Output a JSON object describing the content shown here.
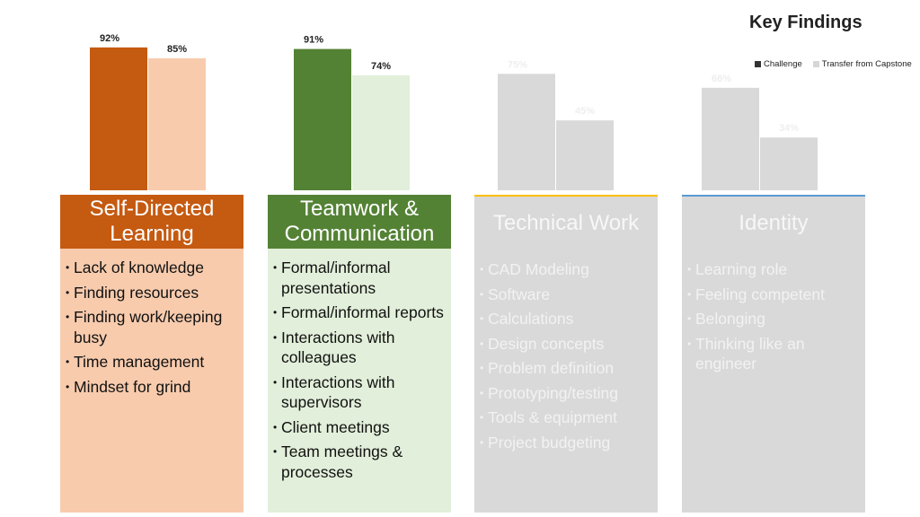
{
  "title": "Key Findings",
  "legend": [
    {
      "label": "Challenge",
      "color": "#333333"
    },
    {
      "label": "Transfer from Capstone",
      "color": "#d6d6d6"
    }
  ],
  "chart_data": {
    "type": "bar",
    "title": "Key Findings",
    "categories": [
      "Self-Directed Learning",
      "Teamwork & Communication",
      "Technical Work",
      "Identity"
    ],
    "series": [
      {
        "name": "Challenge",
        "values": [
          92,
          91,
          75,
          66
        ]
      },
      {
        "name": "Transfer from Capstone",
        "values": [
          85,
          74,
          45,
          34
        ]
      }
    ],
    "value_labels": [
      [
        "92%",
        "85%"
      ],
      [
        "91%",
        "74%"
      ],
      [
        "75%",
        "45%"
      ],
      [
        "66%",
        "34%"
      ]
    ],
    "ylim": [
      0,
      100
    ],
    "grid": false,
    "legend_position": "top-right",
    "colors": {
      "challenge": [
        "#c55a11",
        "#548235",
        "#d9d9d9",
        "#d9d9d9"
      ],
      "transfer": [
        "#f8cbad",
        "#e2efda",
        "#d9d9d9",
        "#d9d9d9"
      ],
      "label": [
        "#222222",
        "#222222",
        "#eeeeee",
        "#eeeeee"
      ]
    }
  },
  "cards": [
    {
      "heading": "Self-Directed Learning",
      "head_color": "#c55a11",
      "body_color": "#f8cbad",
      "items": [
        "Lack of knowledge",
        "Finding resources",
        "Finding work/keeping busy",
        "Time management",
        "Mindset for grind"
      ]
    },
    {
      "heading": "Teamwork & Communication",
      "head_color": "#548235",
      "body_color": "#e2efda",
      "items": [
        "Formal/informal presentations",
        "Formal/informal reports",
        "Interactions with colleagues",
        "Interactions with supervisors",
        "Client meetings",
        "Team meetings & processes"
      ]
    },
    {
      "heading": "Technical Work",
      "head_color": "#d9d9d9",
      "body_color": "#d9d9d9",
      "accent": "#ffc000",
      "items": [
        "CAD Modeling",
        "Software",
        "Calculations",
        "Design concepts",
        "Problem definition",
        "Prototyping/testing",
        "Tools & equipment",
        "Project budgeting"
      ]
    },
    {
      "heading": "Identity",
      "head_color": "#d9d9d9",
      "body_color": "#d9d9d9",
      "accent": "#5b9bd5",
      "items": [
        "Learning role",
        "Feeling competent",
        "Belonging",
        "Thinking like an engineer"
      ]
    }
  ]
}
